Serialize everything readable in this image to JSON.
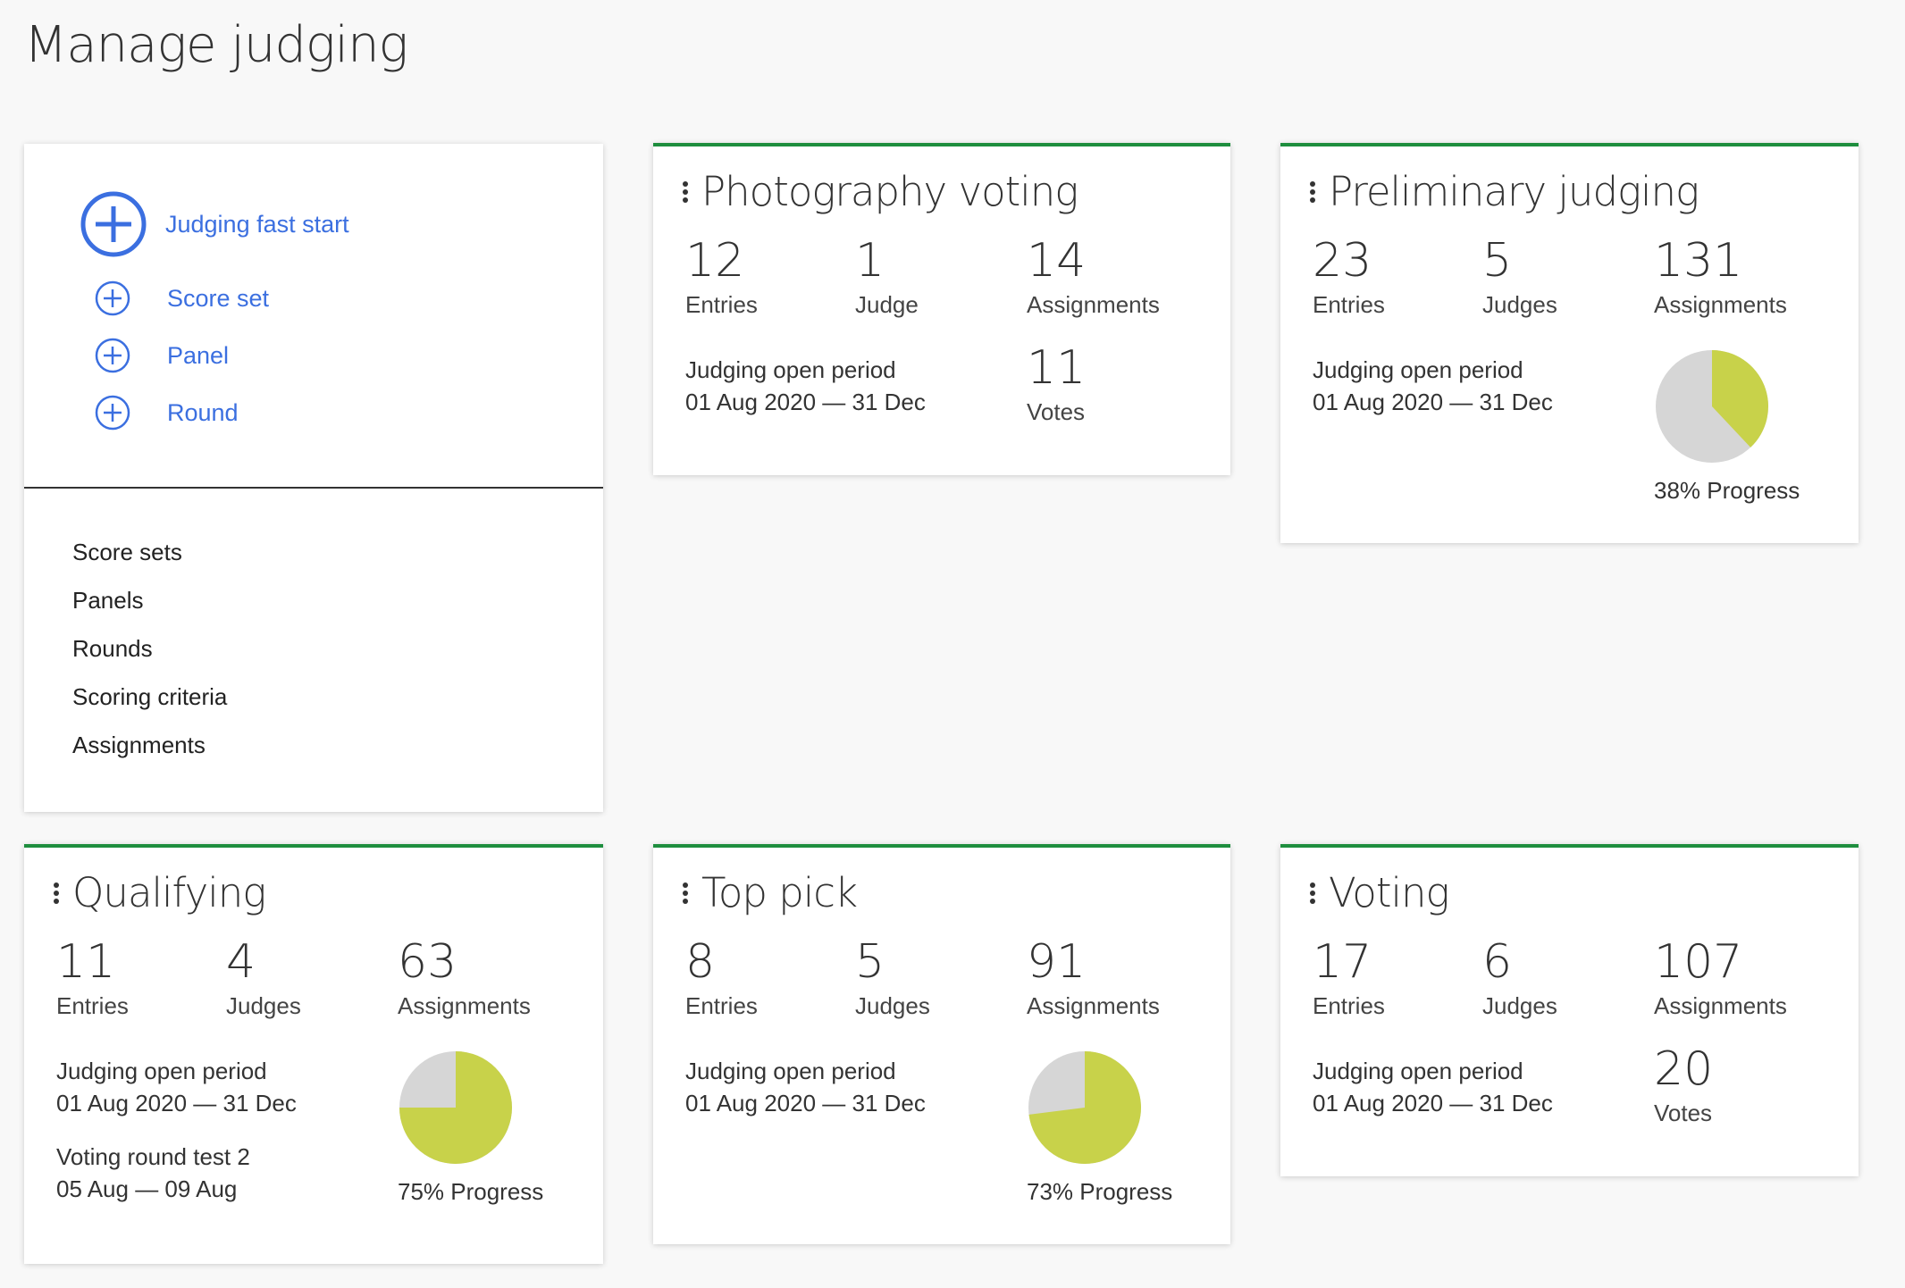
{
  "page": {
    "title": "Manage judging"
  },
  "quick_actions": {
    "fast_start": "Judging fast start",
    "add_items": [
      "Score set",
      "Panel",
      "Round"
    ],
    "links": [
      "Score sets",
      "Panels",
      "Rounds",
      "Scoring criteria",
      "Assignments"
    ]
  },
  "colors": {
    "accent_blue": "#3b6fe0",
    "card_border_green": "#1e8e3e",
    "pie_done": "#c8d24a",
    "pie_remaining": "#d6d6d6"
  },
  "rounds": [
    {
      "name": "Photography voting",
      "entries": {
        "value": "12",
        "label": "Entries"
      },
      "judges": {
        "value": "1",
        "label": "Judge"
      },
      "assignments": {
        "value": "14",
        "label": "Assignments"
      },
      "periods": [
        {
          "label": "Judging open period",
          "dates": "01 Aug 2020 — 31 Dec"
        }
      ],
      "votes": {
        "value": "11",
        "label": "Votes"
      }
    },
    {
      "name": "Preliminary judging",
      "entries": {
        "value": "23",
        "label": "Entries"
      },
      "judges": {
        "value": "5",
        "label": "Judges"
      },
      "assignments": {
        "value": "131",
        "label": "Assignments"
      },
      "periods": [
        {
          "label": "Judging open period",
          "dates": "01 Aug 2020 — 31 Dec"
        }
      ],
      "progress": {
        "percent": 38,
        "label": "38% Progress"
      }
    },
    {
      "name": "Qualifying",
      "entries": {
        "value": "11",
        "label": "Entries"
      },
      "judges": {
        "value": "4",
        "label": "Judges"
      },
      "assignments": {
        "value": "63",
        "label": "Assignments"
      },
      "periods": [
        {
          "label": "Judging open period",
          "dates": "01 Aug 2020 — 31 Dec"
        },
        {
          "label": "Voting round test 2",
          "dates": "05 Aug — 09 Aug"
        }
      ],
      "progress": {
        "percent": 75,
        "label": "75% Progress"
      }
    },
    {
      "name": "Top pick",
      "entries": {
        "value": "8",
        "label": "Entries"
      },
      "judges": {
        "value": "5",
        "label": "Judges"
      },
      "assignments": {
        "value": "91",
        "label": "Assignments"
      },
      "periods": [
        {
          "label": "Judging open period",
          "dates": "01 Aug 2020 — 31 Dec"
        }
      ],
      "progress": {
        "percent": 73,
        "label": "73% Progress"
      }
    },
    {
      "name": "Voting",
      "entries": {
        "value": "17",
        "label": "Entries"
      },
      "judges": {
        "value": "6",
        "label": "Judges"
      },
      "assignments": {
        "value": "107",
        "label": "Assignments"
      },
      "periods": [
        {
          "label": "Judging open period",
          "dates": "01 Aug 2020 — 31 Dec"
        }
      ],
      "votes": {
        "value": "20",
        "label": "Votes"
      }
    }
  ]
}
